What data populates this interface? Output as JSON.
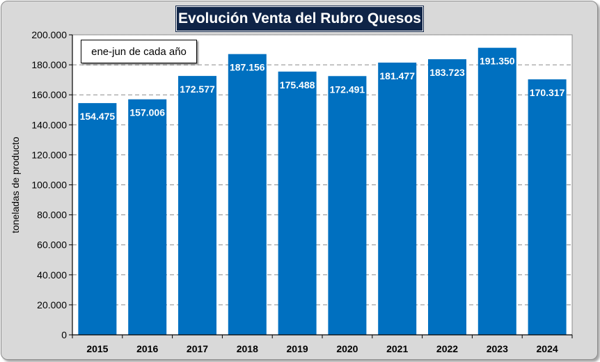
{
  "chart_data": {
    "type": "bar",
    "title": "Evolución Venta del Rubro Quesos",
    "subtitle": "ene-jun de cada año",
    "xlabel": "",
    "ylabel": "toneladas de producto",
    "categories": [
      "2015",
      "2016",
      "2017",
      "2018",
      "2019",
      "2020",
      "2021",
      "2022",
      "2023",
      "2024"
    ],
    "values": [
      154475,
      157006,
      172577,
      187156,
      175488,
      172491,
      181477,
      183723,
      191350,
      170317
    ],
    "value_labels": [
      "154.475",
      "157.006",
      "172.577",
      "187.156",
      "175.488",
      "172.491",
      "181.477",
      "183.723",
      "191.350",
      "170.317"
    ],
    "ylim": [
      0,
      200000
    ],
    "yticks": [
      0,
      20000,
      40000,
      60000,
      80000,
      100000,
      120000,
      140000,
      160000,
      180000,
      200000
    ],
    "ytick_labels": [
      "0",
      "20.000",
      "40.000",
      "60.000",
      "80.000",
      "100.000",
      "120.000",
      "140.000",
      "160.000",
      "180.000",
      "200.000"
    ],
    "grid": true,
    "bar_color": "#0070c0",
    "plot_background": "#ffffff",
    "frame_background": "#d9d9d9",
    "title_background": "#0f2447"
  }
}
